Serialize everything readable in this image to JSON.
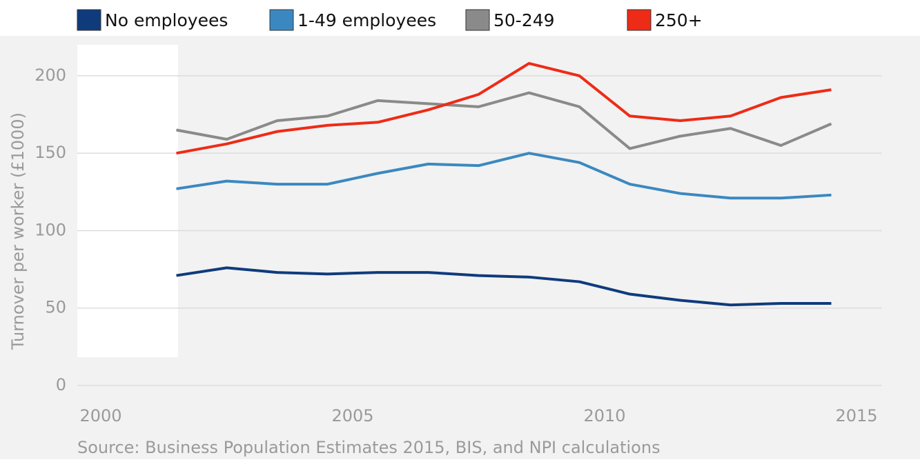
{
  "chart_data": {
    "type": "line",
    "y_label": "Turnover per worker (£1000)",
    "source": "Source: Business Population Estimates 2015, BIS, and NPI calculations",
    "x": [
      2001.5,
      2002.5,
      2003.5,
      2004.5,
      2005.5,
      2006.5,
      2007.5,
      2008.5,
      2009.5,
      2010.5,
      2011.5,
      2012.5,
      2013.5,
      2014.5
    ],
    "series": [
      {
        "name": "No employees",
        "color": "#0f3b7c",
        "values": [
          71,
          76,
          73,
          72,
          73,
          73,
          71,
          70,
          67,
          59,
          55,
          52,
          53,
          53
        ]
      },
      {
        "name": "1-49 employees",
        "color": "#3b88c0",
        "values": [
          127,
          132,
          130,
          130,
          137,
          143,
          142,
          150,
          144,
          130,
          124,
          121,
          121,
          123
        ]
      },
      {
        "name": "50-249",
        "color": "#8a8a8a",
        "values": [
          165,
          159,
          171,
          174,
          184,
          182,
          180,
          189,
          180,
          153,
          161,
          166,
          155,
          169
        ]
      },
      {
        "name": "250+",
        "color": "#ee2b17",
        "values": [
          150,
          156,
          164,
          168,
          170,
          178,
          188,
          208,
          200,
          174,
          171,
          174,
          186,
          191
        ]
      }
    ],
    "xlim": [
      1999.5,
      2015.5
    ],
    "xticks": [
      2000,
      2005,
      2010,
      2015
    ],
    "ylim": [
      0,
      220
    ],
    "yticks": [
      0,
      50,
      100,
      150,
      200
    ],
    "grid": true
  }
}
